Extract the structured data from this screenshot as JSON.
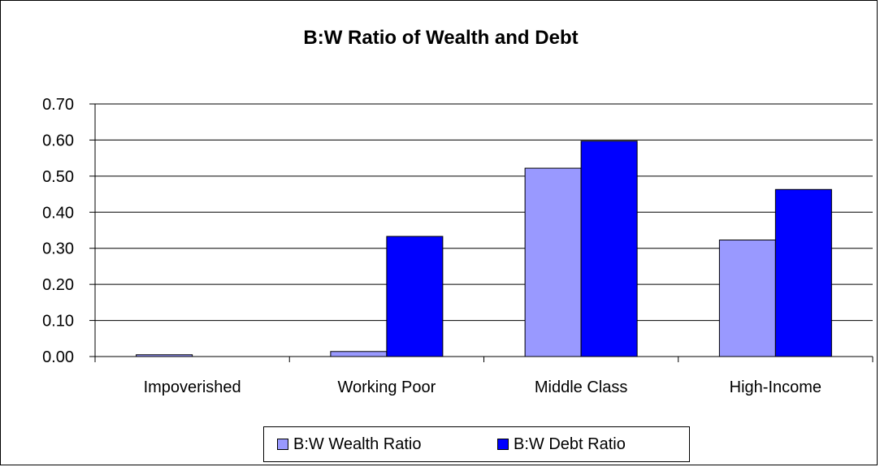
{
  "chart_data": {
    "type": "bar",
    "title": "B:W Ratio of Wealth and Debt",
    "categories": [
      "Impoverished",
      "Working Poor",
      "Middle Class",
      "High-Income"
    ],
    "series": [
      {
        "name": "B:W Wealth Ratio",
        "values": [
          0.005,
          0.014,
          0.522,
          0.323
        ],
        "color": "#9999ff"
      },
      {
        "name": "B:W Debt Ratio",
        "values": [
          0.0,
          0.333,
          0.597,
          0.463
        ],
        "color": "#0000ff"
      }
    ],
    "y_ticks": [
      "0.00",
      "0.10",
      "0.20",
      "0.30",
      "0.40",
      "0.50",
      "0.60",
      "0.70"
    ],
    "ylim": [
      0,
      0.7
    ],
    "grid": true,
    "legend_position": "bottom",
    "xlabel": "",
    "ylabel": ""
  }
}
